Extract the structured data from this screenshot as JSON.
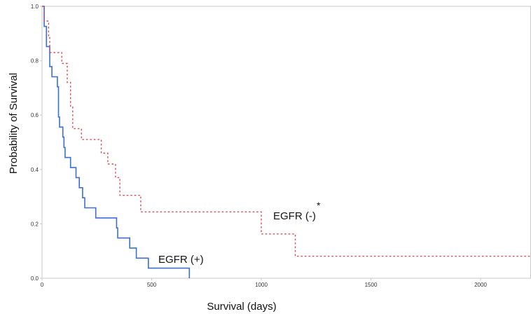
{
  "chart_data": {
    "type": "line",
    "title": "",
    "xlabel": "Survival (days)",
    "ylabel": "Probability of Survival",
    "xlim": [
      0,
      2230
    ],
    "ylim": [
      0,
      1.0
    ],
    "x_ticks": [
      0,
      500,
      1000,
      1500,
      2000
    ],
    "x_tick_labels": [
      "0",
      "500",
      "1000",
      "1500",
      "2000"
    ],
    "y_ticks": [
      0.0,
      0.2,
      0.4,
      0.6,
      0.8,
      1.0
    ],
    "y_tick_labels": [
      "0.0",
      "0.2",
      "0.4",
      "0.6",
      "0.8",
      "1.0"
    ],
    "grid": false,
    "series": [
      {
        "name": "EGFR (+)",
        "color": "#3a6fd8",
        "style": "solid",
        "points": [
          [
            0,
            1.0
          ],
          [
            10,
            1.0
          ],
          [
            10,
            0.926
          ],
          [
            20,
            0.926
          ],
          [
            20,
            0.852
          ],
          [
            35,
            0.852
          ],
          [
            35,
            0.778
          ],
          [
            45,
            0.778
          ],
          [
            45,
            0.741
          ],
          [
            70,
            0.741
          ],
          [
            70,
            0.704
          ],
          [
            75,
            0.704
          ],
          [
            75,
            0.593
          ],
          [
            80,
            0.593
          ],
          [
            80,
            0.556
          ],
          [
            95,
            0.556
          ],
          [
            95,
            0.519
          ],
          [
            100,
            0.519
          ],
          [
            100,
            0.481
          ],
          [
            105,
            0.481
          ],
          [
            105,
            0.444
          ],
          [
            130,
            0.444
          ],
          [
            130,
            0.407
          ],
          [
            155,
            0.407
          ],
          [
            155,
            0.37
          ],
          [
            170,
            0.37
          ],
          [
            170,
            0.333
          ],
          [
            185,
            0.333
          ],
          [
            185,
            0.296
          ],
          [
            195,
            0.296
          ],
          [
            195,
            0.259
          ],
          [
            245,
            0.259
          ],
          [
            245,
            0.222
          ],
          [
            340,
            0.222
          ],
          [
            340,
            0.185
          ],
          [
            345,
            0.185
          ],
          [
            345,
            0.148
          ],
          [
            400,
            0.148
          ],
          [
            400,
            0.111
          ],
          [
            430,
            0.111
          ],
          [
            430,
            0.074
          ],
          [
            485,
            0.074
          ],
          [
            485,
            0.037
          ],
          [
            672,
            0.037
          ],
          [
            672,
            0.0
          ]
        ]
      },
      {
        "name": "EGFR (-)",
        "annotation": "*",
        "color": "#e0474c",
        "style": "dotted",
        "points": [
          [
            0,
            1.0
          ],
          [
            10,
            1.0
          ],
          [
            10,
            0.946
          ],
          [
            30,
            0.946
          ],
          [
            30,
            0.892
          ],
          [
            35,
            0.892
          ],
          [
            35,
            0.83
          ],
          [
            90,
            0.83
          ],
          [
            90,
            0.79
          ],
          [
            115,
            0.79
          ],
          [
            115,
            0.72
          ],
          [
            130,
            0.72
          ],
          [
            130,
            0.63
          ],
          [
            140,
            0.63
          ],
          [
            140,
            0.55
          ],
          [
            180,
            0.55
          ],
          [
            180,
            0.51
          ],
          [
            270,
            0.51
          ],
          [
            270,
            0.46
          ],
          [
            300,
            0.46
          ],
          [
            300,
            0.42
          ],
          [
            335,
            0.42
          ],
          [
            335,
            0.37
          ],
          [
            355,
            0.37
          ],
          [
            355,
            0.305
          ],
          [
            450,
            0.305
          ],
          [
            450,
            0.244
          ],
          [
            1000,
            0.244
          ],
          [
            1000,
            0.163
          ],
          [
            1155,
            0.163
          ],
          [
            1155,
            0.081
          ],
          [
            2230,
            0.081
          ]
        ]
      }
    ]
  }
}
